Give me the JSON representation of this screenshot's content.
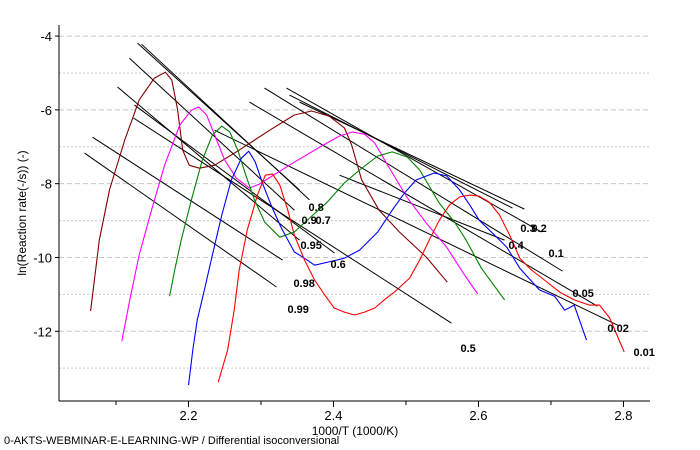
{
  "footer": "0-AKTS-WEBMINAR-E-LEARNING-WP / Differential isoconversional",
  "chart_data": {
    "type": "line",
    "title": "",
    "xlabel": "1000/T (1000/K)",
    "ylabel": "ln(Reaction rate(-/s)) (-)",
    "xlim": [
      2.0214,
      2.8366
    ],
    "ylim": [
      -13.89,
      -3.7
    ],
    "x_ticks": [
      2.2,
      2.4,
      2.6,
      2.8
    ],
    "x_minor_ticks": [
      2.1,
      2.3,
      2.5,
      2.7
    ],
    "y_ticks": [
      -4,
      -6,
      -8,
      -10,
      -12
    ],
    "grid": {
      "dashed": [
        -4,
        -6,
        -8,
        -10,
        -12
      ],
      "dotted": [
        -5,
        -7,
        -9,
        -11,
        -13
      ]
    },
    "series": [
      {
        "color": "#800000",
        "points": [
          [
            2.065,
            -11.45
          ],
          [
            2.077,
            -9.53
          ],
          [
            2.091,
            -8.17
          ],
          [
            2.112,
            -6.82
          ],
          [
            2.132,
            -5.73
          ],
          [
            2.153,
            -5.14
          ],
          [
            2.168,
            -4.98
          ],
          [
            2.177,
            -5.19
          ],
          [
            2.185,
            -6.0
          ],
          [
            2.192,
            -7.09
          ],
          [
            2.201,
            -7.5
          ],
          [
            2.215,
            -7.58
          ],
          [
            2.236,
            -7.5
          ],
          [
            2.27,
            -7.09
          ],
          [
            2.312,
            -6.55
          ],
          [
            2.346,
            -6.14
          ],
          [
            2.37,
            -6.03
          ],
          [
            2.394,
            -6.17
          ],
          [
            2.415,
            -6.49
          ],
          [
            2.425,
            -6.95
          ],
          [
            2.439,
            -7.9
          ],
          [
            2.463,
            -8.72
          ],
          [
            2.491,
            -9.31
          ],
          [
            2.528,
            -9.99
          ],
          [
            2.557,
            -10.67
          ]
        ]
      },
      {
        "color": "#ff00ff",
        "points": [
          [
            2.108,
            -12.27
          ],
          [
            2.119,
            -11.15
          ],
          [
            2.132,
            -9.93
          ],
          [
            2.149,
            -8.72
          ],
          [
            2.167,
            -7.5
          ],
          [
            2.188,
            -6.41
          ],
          [
            2.204,
            -6.01
          ],
          [
            2.214,
            -5.92
          ],
          [
            2.225,
            -6.14
          ],
          [
            2.236,
            -6.68
          ],
          [
            2.25,
            -7.36
          ],
          [
            2.266,
            -7.85
          ],
          [
            2.284,
            -8.12
          ],
          [
            2.298,
            -8.01
          ],
          [
            2.339,
            -7.5
          ],
          [
            2.381,
            -7.01
          ],
          [
            2.408,
            -6.71
          ],
          [
            2.426,
            -6.6
          ],
          [
            2.443,
            -6.66
          ],
          [
            2.457,
            -6.9
          ],
          [
            2.473,
            -7.44
          ],
          [
            2.501,
            -8.36
          ],
          [
            2.528,
            -9.07
          ],
          [
            2.556,
            -9.72
          ],
          [
            2.581,
            -10.48
          ],
          [
            2.599,
            -10.99
          ]
        ]
      },
      {
        "color": "#008000",
        "points": [
          [
            2.174,
            -11.05
          ],
          [
            2.181,
            -10.34
          ],
          [
            2.19,
            -9.53
          ],
          [
            2.204,
            -8.44
          ],
          [
            2.219,
            -7.36
          ],
          [
            2.233,
            -6.68
          ],
          [
            2.246,
            -6.44
          ],
          [
            2.257,
            -6.6
          ],
          [
            2.268,
            -7.09
          ],
          [
            2.279,
            -7.77
          ],
          [
            2.291,
            -8.44
          ],
          [
            2.305,
            -9.04
          ],
          [
            2.326,
            -9.45
          ],
          [
            2.346,
            -9.31
          ],
          [
            2.367,
            -8.93
          ],
          [
            2.39,
            -8.53
          ],
          [
            2.415,
            -7.98
          ],
          [
            2.436,
            -7.63
          ],
          [
            2.461,
            -7.25
          ],
          [
            2.481,
            -7.14
          ],
          [
            2.502,
            -7.28
          ],
          [
            2.519,
            -7.63
          ],
          [
            2.546,
            -8.53
          ],
          [
            2.567,
            -9.04
          ],
          [
            2.583,
            -9.53
          ],
          [
            2.604,
            -10.29
          ],
          [
            2.636,
            -11.15
          ]
        ]
      },
      {
        "color": "#0000ff",
        "points": [
          [
            2.2,
            -13.46
          ],
          [
            2.206,
            -12.51
          ],
          [
            2.212,
            -11.7
          ],
          [
            2.222,
            -10.88
          ],
          [
            2.233,
            -9.93
          ],
          [
            2.246,
            -8.85
          ],
          [
            2.259,
            -7.9
          ],
          [
            2.273,
            -7.31
          ],
          [
            2.283,
            -7.12
          ],
          [
            2.292,
            -7.41
          ],
          [
            2.303,
            -8.04
          ],
          [
            2.314,
            -8.58
          ],
          [
            2.328,
            -9.2
          ],
          [
            2.346,
            -9.85
          ],
          [
            2.36,
            -10.02
          ],
          [
            2.374,
            -10.21
          ],
          [
            2.394,
            -10.12
          ],
          [
            2.415,
            -10.02
          ],
          [
            2.436,
            -9.8
          ],
          [
            2.461,
            -9.31
          ],
          [
            2.481,
            -8.72
          ],
          [
            2.498,
            -8.25
          ],
          [
            2.514,
            -7.9
          ],
          [
            2.539,
            -7.71
          ],
          [
            2.556,
            -7.79
          ],
          [
            2.574,
            -8.17
          ],
          [
            2.588,
            -8.58
          ],
          [
            2.601,
            -8.99
          ],
          [
            2.622,
            -9.39
          ],
          [
            2.639,
            -9.72
          ],
          [
            2.657,
            -10.29
          ],
          [
            2.684,
            -10.88
          ],
          [
            2.705,
            -11.05
          ],
          [
            2.719,
            -11.43
          ],
          [
            2.732,
            -11.29
          ],
          [
            2.749,
            -12.24
          ]
        ]
      },
      {
        "color": "#ff0000",
        "points": [
          [
            2.241,
            -13.38
          ],
          [
            2.254,
            -12.51
          ],
          [
            2.263,
            -11.43
          ],
          [
            2.27,
            -10.34
          ],
          [
            2.281,
            -9.26
          ],
          [
            2.295,
            -8.31
          ],
          [
            2.306,
            -7.77
          ],
          [
            2.316,
            -7.74
          ],
          [
            2.326,
            -8.04
          ],
          [
            2.337,
            -8.72
          ],
          [
            2.346,
            -9.39
          ],
          [
            2.36,
            -10.07
          ],
          [
            2.374,
            -10.61
          ],
          [
            2.388,
            -11.02
          ],
          [
            2.401,
            -11.37
          ],
          [
            2.415,
            -11.48
          ],
          [
            2.429,
            -11.56
          ],
          [
            2.443,
            -11.48
          ],
          [
            2.457,
            -11.37
          ],
          [
            2.47,
            -11.15
          ],
          [
            2.484,
            -10.94
          ],
          [
            2.505,
            -10.56
          ],
          [
            2.519,
            -10.07
          ],
          [
            2.532,
            -9.53
          ],
          [
            2.546,
            -8.99
          ],
          [
            2.56,
            -8.58
          ],
          [
            2.574,
            -8.36
          ],
          [
            2.588,
            -8.31
          ],
          [
            2.601,
            -8.34
          ],
          [
            2.615,
            -8.5
          ],
          [
            2.629,
            -8.85
          ],
          [
            2.643,
            -9.39
          ],
          [
            2.657,
            -10.02
          ],
          [
            2.673,
            -10.34
          ],
          [
            2.691,
            -10.61
          ],
          [
            2.712,
            -10.94
          ],
          [
            2.732,
            -11.15
          ],
          [
            2.753,
            -11.29
          ],
          [
            2.767,
            -11.29
          ],
          [
            2.781,
            -11.64
          ],
          [
            2.794,
            -12.24
          ],
          [
            2.801,
            -12.56
          ]
        ]
      }
    ],
    "isoconversional_lines": [
      {
        "alpha": "0.01",
        "from": [
          2.2359,
          -6.55
        ],
        "to": [
          2.7945,
          -11.86
        ],
        "label_at": [
          2.8262,
          -12.56
        ]
      },
      {
        "alpha": "0.02",
        "from": [
          2.2841,
          -5.79
        ],
        "to": [
          2.7641,
          -11.32
        ],
        "label_at": [
          2.7903,
          -11.91
        ]
      },
      {
        "alpha": "0.05",
        "from": [
          2.3048,
          -5.41
        ],
        "to": [
          2.7159,
          -10.37
        ],
        "label_at": [
          2.7421,
          -10.96
        ]
      },
      {
        "alpha": "0.1",
        "from": [
          2.3352,
          -5.41
        ],
        "to": [
          2.6869,
          -9.31
        ],
        "label_at": [
          2.709,
          -9.88
        ]
      },
      {
        "alpha": "0.2",
        "from": [
          2.3531,
          -5.79
        ],
        "to": [
          2.6634,
          -8.69
        ],
        "label_at": [
          2.6855,
          -9.2
        ]
      },
      {
        "alpha": "0.3",
        "from": [
          2.3393,
          -5.6
        ],
        "to": [
          2.6469,
          -8.66
        ],
        "label_at": [
          2.6703,
          -9.2
        ]
      },
      {
        "alpha": "0.4",
        "from": [
          2.4083,
          -7.77
        ],
        "to": [
          2.6359,
          -9.53
        ],
        "label_at": [
          2.6538,
          -9.66
        ]
      },
      {
        "alpha": "0.5",
        "from": [
          2.1241,
          -6.22
        ],
        "to": [
          2.5628,
          -11.78
        ],
        "label_at": [
          2.5876,
          -12.46
        ]
      },
      {
        "alpha": "0.6",
        "from": [
          2.1255,
          -5.87
        ],
        "to": [
          2.4014,
          -9.88
        ],
        "label_at": [
          2.4083,
          -10.18
        ]
      },
      {
        "alpha": "0.7",
        "from": [
          2.1297,
          -4.19
        ],
        "to": [
          2.3531,
          -8.17
        ],
        "label_at": [
          2.3876,
          -8.99
        ]
      },
      {
        "alpha": "0.8",
        "from": [
          2.1352,
          -4.22
        ],
        "to": [
          2.3669,
          -8.44
        ],
        "label_at": [
          2.3779,
          -8.63
        ]
      },
      {
        "alpha": "0.9",
        "from": [
          2.1186,
          -4.6
        ],
        "to": [
          2.3462,
          -8.72
        ],
        "label_at": [
          2.3683,
          -8.99
        ]
      },
      {
        "alpha": "0.95",
        "from": [
          2.1021,
          -5.38
        ],
        "to": [
          2.3531,
          -9.53
        ],
        "label_at": [
          2.3669,
          -9.66
        ]
      },
      {
        "alpha": "0.98",
        "from": [
          2.0676,
          -6.74
        ],
        "to": [
          2.3297,
          -10.07
        ],
        "label_at": [
          2.3572,
          -10.69
        ]
      },
      {
        "alpha": "0.99",
        "from": [
          2.0566,
          -7.17
        ],
        "to": [
          2.3214,
          -10.8
        ],
        "label_at": [
          2.349,
          -11.4
        ]
      }
    ]
  }
}
